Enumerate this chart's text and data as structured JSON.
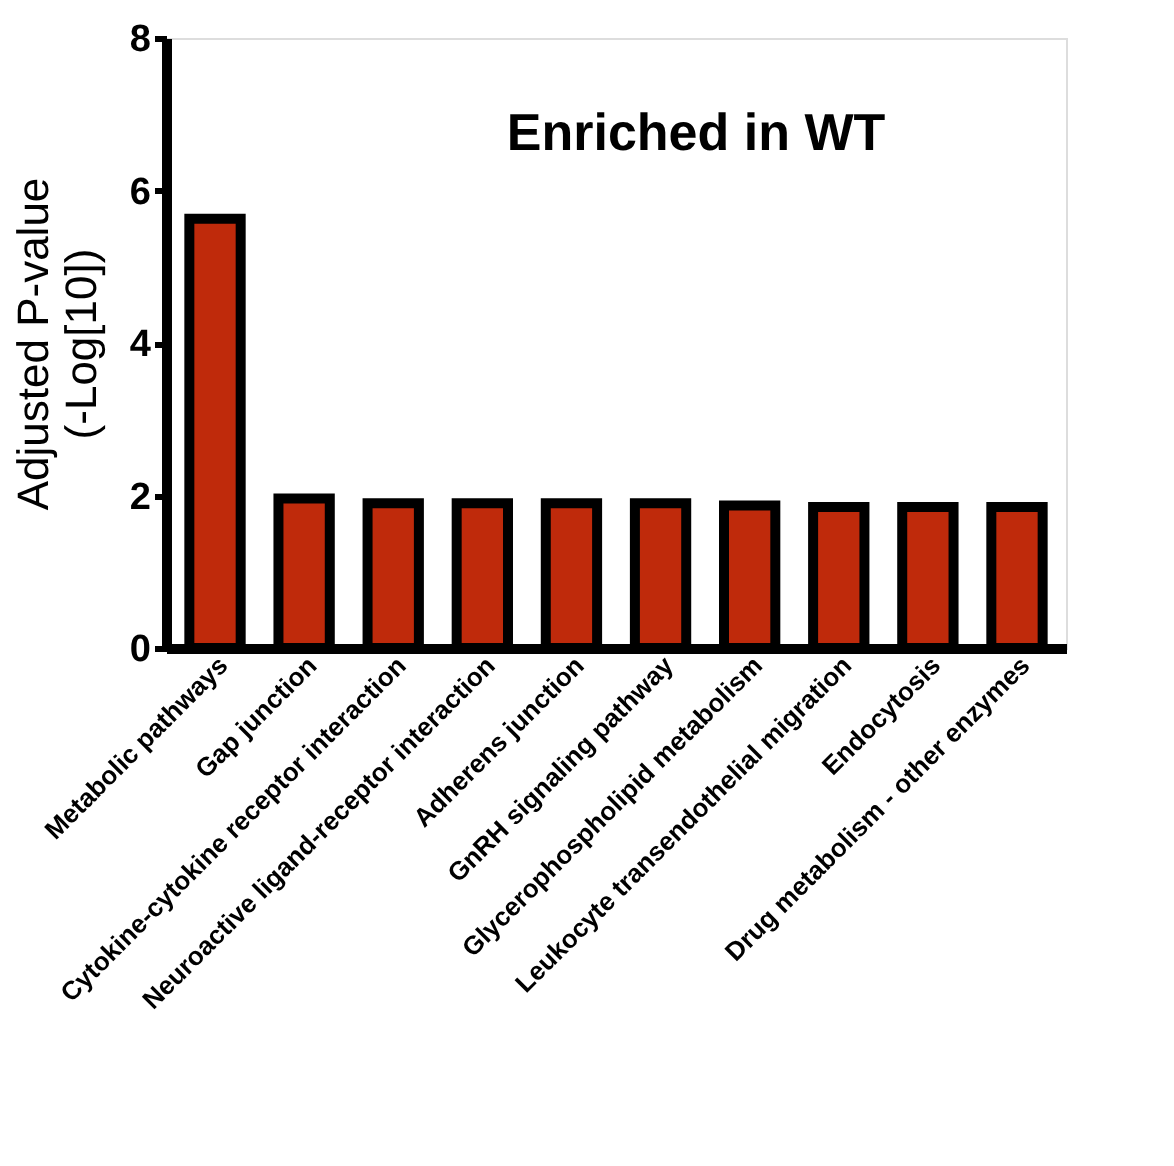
{
  "chart_data": {
    "type": "bar",
    "title": "Enriched in WT",
    "ylabel": "Adjusted P-value\n(-Log[10])",
    "categories": [
      "Metabolic pathways",
      "Gap junction",
      "Cytokine-cytokine receptor interaction",
      "Neuroactive ligand-receptor interaction",
      "Adherens junction",
      "GnRH signaling pathway",
      "Glycerophospholipid metabolism",
      "Leukocyte transendothelial migration",
      "Endocytosis",
      "Drug metabolism - other enzymes"
    ],
    "values": [
      5.63,
      1.96,
      1.9,
      1.9,
      1.9,
      1.9,
      1.87,
      1.85,
      1.85,
      1.85
    ],
    "color": "#bf2a0b",
    "ylim": [
      0,
      8
    ],
    "yticks": [
      0,
      2,
      4,
      6,
      8
    ],
    "grid": false
  }
}
